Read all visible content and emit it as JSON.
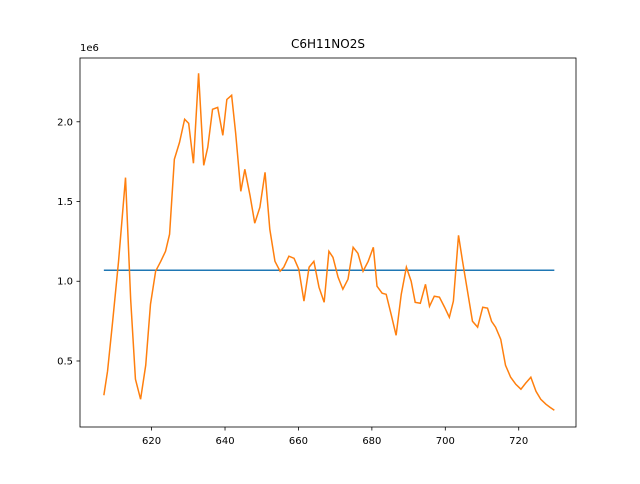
{
  "chart_data": {
    "type": "line",
    "title": "C6H11NO2S",
    "y_offset_text": "1e6",
    "xlim": [
      600.5,
      735.6
    ],
    "xticks": [
      620,
      640,
      660,
      680,
      700,
      720
    ],
    "ylim": [
      86000,
      2400000
    ],
    "yticks": [
      {
        "value": 500000,
        "label": "0.5"
      },
      {
        "value": 1000000,
        "label": "1.0"
      },
      {
        "value": 1500000,
        "label": "1.5"
      },
      {
        "value": 2000000,
        "label": "2.0"
      }
    ],
    "series": [
      {
        "color": "#1f77b4",
        "x": [
          607.0,
          729.7
        ],
        "values": [
          1069000,
          1069000
        ]
      },
      {
        "color": "#ff7f0e",
        "x": [
          607.0,
          608.0,
          609.4,
          611.0,
          612.9,
          614.3,
          615.6,
          617.0,
          618.4,
          619.7,
          621.1,
          622.5,
          623.8,
          624.9,
          626.2,
          627.6,
          629.0,
          630.1,
          631.4,
          632.8,
          634.2,
          635.3,
          636.6,
          638.0,
          639.4,
          640.5,
          641.8,
          642.9,
          644.3,
          645.4,
          646.8,
          648.1,
          649.5,
          650.9,
          652.2,
          653.6,
          655.0,
          656.0,
          657.4,
          658.8,
          660.1,
          661.5,
          662.9,
          664.2,
          665.6,
          667.0,
          668.3,
          669.4,
          670.8,
          672.1,
          673.5,
          674.9,
          676.2,
          677.6,
          679.0,
          680.4,
          681.4,
          682.8,
          683.9,
          685.3,
          686.6,
          688.0,
          689.4,
          690.7,
          691.8,
          693.2,
          694.6,
          695.7,
          697.0,
          698.4,
          699.8,
          701.1,
          702.2,
          703.6,
          704.7,
          706.0,
          707.4,
          708.8,
          710.2,
          711.5,
          712.6,
          713.7,
          715.1,
          716.4,
          717.8,
          719.2,
          720.6,
          721.9,
          723.3,
          724.7,
          726.0,
          727.4,
          728.5,
          729.7
        ],
        "values": [
          285000,
          436000,
          750000,
          1125000,
          1650000,
          887000,
          386000,
          260000,
          473000,
          856000,
          1063000,
          1125000,
          1188000,
          1295000,
          1765000,
          1870000,
          2016000,
          1990000,
          1740000,
          2304000,
          1727000,
          1840000,
          2078000,
          2090000,
          1915000,
          2140000,
          2166000,
          1928000,
          1564000,
          1702000,
          1539000,
          1364000,
          1464000,
          1683000,
          1326000,
          1125000,
          1063000,
          1088000,
          1157000,
          1144000,
          1075000,
          875000,
          1088000,
          1125000,
          962000,
          868000,
          1188000,
          1150000,
          1025000,
          950000,
          1013000,
          1213000,
          1175000,
          1063000,
          1125000,
          1213000,
          969000,
          925000,
          918000,
          787000,
          661000,
          918000,
          1088000,
          1000000,
          868000,
          862000,
          981000,
          843000,
          906000,
          900000,
          837000,
          774000,
          875000,
          1288000,
          1125000,
          944000,
          749000,
          712000,
          837000,
          831000,
          749000,
          712000,
          636000,
          473000,
          398000,
          354000,
          323000,
          361000,
          398000,
          310000,
          260000,
          229000,
          210000,
          191000
        ]
      }
    ]
  }
}
